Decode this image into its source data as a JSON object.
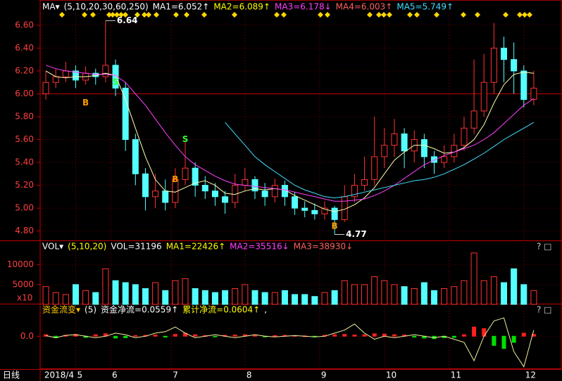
{
  "chart_data": [
    {
      "type": "candlestick",
      "header": [
        {
          "text": "MA▾",
          "color": "#ffffff"
        },
        {
          "text": "(5,10,20,30,60,250)",
          "color": "#ffffff"
        },
        {
          "text": "MA1=6.052↑",
          "color": "#ffffff"
        },
        {
          "text": "MA2=6.089↑",
          "color": "#ffff00"
        },
        {
          "text": "MA3=6.178↓",
          "color": "#ff40ff"
        },
        {
          "text": "MA4=6.003↑",
          "color": "#ff6060"
        },
        {
          "text": "MA5=5.749↑",
          "color": "#40e0ff"
        }
      ],
      "ohlc": [
        [
          6.0,
          6.2,
          5.95,
          6.1
        ],
        [
          6.1,
          6.22,
          6.05,
          6.15
        ],
        [
          6.15,
          6.28,
          6.1,
          6.2
        ],
        [
          6.2,
          6.25,
          6.05,
          6.12
        ],
        [
          6.12,
          6.24,
          6.08,
          6.18
        ],
        [
          6.18,
          6.22,
          6.08,
          6.15
        ],
        [
          6.15,
          6.64,
          6.1,
          6.25
        ],
        [
          6.25,
          6.3,
          5.98,
          6.05
        ],
        [
          6.05,
          6.1,
          5.5,
          5.6
        ],
        [
          5.6,
          5.65,
          5.2,
          5.3
        ],
        [
          5.3,
          5.35,
          4.98,
          5.1
        ],
        [
          5.1,
          5.3,
          5.0,
          5.15
        ],
        [
          5.15,
          5.25,
          4.98,
          5.05
        ],
        [
          5.05,
          5.35,
          5.0,
          5.25
        ],
        [
          5.25,
          5.58,
          5.2,
          5.35
        ],
        [
          5.35,
          5.4,
          5.1,
          5.2
        ],
        [
          5.2,
          5.28,
          5.08,
          5.15
        ],
        [
          5.15,
          5.22,
          5.02,
          5.1
        ],
        [
          5.1,
          5.15,
          4.95,
          5.05
        ],
        [
          5.05,
          5.3,
          5.0,
          5.2
        ],
        [
          5.2,
          5.35,
          5.15,
          5.25
        ],
        [
          5.25,
          5.28,
          5.08,
          5.15
        ],
        [
          5.15,
          5.22,
          5.02,
          5.1
        ],
        [
          5.1,
          5.26,
          5.05,
          5.2
        ],
        [
          5.2,
          5.24,
          5.02,
          5.1
        ],
        [
          5.1,
          5.14,
          4.94,
          5.0
        ],
        [
          5.0,
          5.06,
          4.92,
          4.98
        ],
        [
          4.98,
          5.04,
          4.9,
          4.95
        ],
        [
          4.95,
          5.06,
          4.9,
          5.0
        ],
        [
          5.0,
          5.02,
          4.77,
          4.9
        ],
        [
          4.9,
          5.2,
          4.88,
          5.1
        ],
        [
          5.1,
          5.3,
          5.05,
          5.2
        ],
        [
          5.2,
          5.45,
          5.15,
          5.25
        ],
        [
          5.25,
          5.8,
          5.2,
          5.45
        ],
        [
          5.45,
          5.7,
          5.35,
          5.55
        ],
        [
          5.55,
          5.78,
          5.45,
          5.65
        ],
        [
          5.65,
          5.7,
          5.35,
          5.5
        ],
        [
          5.5,
          5.68,
          5.4,
          5.6
        ],
        [
          5.6,
          5.65,
          5.35,
          5.45
        ],
        [
          5.45,
          5.5,
          5.3,
          5.4
        ],
        [
          5.4,
          5.55,
          5.35,
          5.45
        ],
        [
          5.45,
          5.65,
          5.4,
          5.55
        ],
        [
          5.55,
          5.8,
          5.5,
          5.7
        ],
        [
          5.7,
          6.3,
          5.65,
          5.85
        ],
        [
          5.85,
          6.35,
          5.8,
          6.1
        ],
        [
          6.1,
          6.62,
          6.0,
          6.4
        ],
        [
          6.4,
          6.5,
          6.1,
          6.3
        ],
        [
          6.3,
          6.45,
          6.0,
          6.2
        ],
        [
          6.2,
          6.25,
          5.88,
          5.95
        ],
        [
          5.95,
          6.2,
          5.9,
          6.05
        ]
      ],
      "up_color": "#ff3232",
      "down_color": "#54ffff",
      "series": [
        {
          "color": "#ffffb0",
          "values": [
            6.2,
            6.15,
            6.14,
            6.15,
            6.15,
            6.16,
            6.18,
            6.16,
            5.95,
            5.7,
            5.45,
            5.25,
            5.15,
            5.14,
            5.18,
            5.22,
            5.24,
            5.2,
            5.13,
            5.12,
            5.15,
            5.17,
            5.16,
            5.17,
            5.16,
            5.11,
            5.07,
            5.03,
            4.99,
            4.97,
            4.99,
            5.03,
            5.09,
            5.18,
            5.3,
            5.42,
            5.49,
            5.55,
            5.55,
            5.52,
            5.48,
            5.49,
            5.53,
            5.6,
            5.73,
            5.92,
            6.08,
            6.17,
            6.19,
            6.18
          ]
        },
        {
          "color": "#ff40ff",
          "values": [
            6.25,
            6.22,
            6.2,
            6.19,
            6.18,
            6.17,
            6.17,
            6.16,
            6.1,
            6.0,
            5.9,
            5.78,
            5.66,
            5.55,
            5.45,
            5.38,
            5.33,
            5.28,
            5.24,
            5.21,
            5.2,
            5.19,
            5.18,
            5.17,
            5.16,
            5.14,
            5.12,
            5.1,
            5.08,
            5.06,
            5.06,
            5.07,
            5.08,
            5.11,
            5.15,
            5.2,
            5.26,
            5.32,
            5.38,
            5.42,
            5.46,
            5.49,
            5.52,
            5.55,
            5.6,
            5.66,
            5.74,
            5.82,
            5.9,
            5.96
          ]
        },
        {
          "color": "#40e0ff",
          "values": [
            null,
            null,
            null,
            null,
            null,
            null,
            null,
            null,
            null,
            null,
            null,
            null,
            null,
            null,
            null,
            null,
            null,
            null,
            5.75,
            5.65,
            5.55,
            5.45,
            5.38,
            5.32,
            5.26,
            5.2,
            5.16,
            5.13,
            5.1,
            5.09,
            5.1,
            5.12,
            5.14,
            5.16,
            5.18,
            5.2,
            5.22,
            5.24,
            5.25,
            5.27,
            5.3,
            5.34,
            5.38,
            5.43,
            5.48,
            5.54,
            5.6,
            5.65,
            5.7,
            5.75
          ]
        }
      ],
      "ylim": [
        4.73,
        6.71
      ],
      "yticks": [
        {
          "value": 4.8,
          "label": "4.80"
        },
        {
          "value": 5.0,
          "label": "5.00"
        },
        {
          "value": 5.2,
          "label": "5.20"
        },
        {
          "value": 5.4,
          "label": "5.40"
        },
        {
          "value": 5.6,
          "label": "5.60"
        },
        {
          "value": 5.8,
          "label": "5.80"
        },
        {
          "value": 6.0,
          "label": "6.00"
        },
        {
          "value": 6.2,
          "label": "6.20"
        },
        {
          "value": 6.4,
          "label": "6.40"
        },
        {
          "value": 6.6,
          "label": "6.60"
        }
      ],
      "annotations": [
        {
          "text": "6.64",
          "x": 6,
          "y": 6.64,
          "color": "#ffffff"
        },
        {
          "text": "4.77",
          "x": 29,
          "y": 4.77,
          "color": "#ffffff"
        },
        {
          "text": "B",
          "x": 4,
          "y": 5.92,
          "color": "#ff9900"
        },
        {
          "text": "S",
          "x": 7,
          "y": 6.1,
          "color": "#33ff33"
        },
        {
          "text": "B",
          "x": 13,
          "y": 5.25,
          "color": "#ff9900"
        },
        {
          "text": "S",
          "x": 14,
          "y": 5.6,
          "color": "#33ff33"
        },
        {
          "text": "B",
          "x": 29,
          "y": 4.84,
          "color": "#ff9900"
        }
      ]
    },
    {
      "type": "bar",
      "header": [
        {
          "text": "VOL▾",
          "color": "#ffffff"
        },
        {
          "text": "(5,10,20)",
          "color": "#ffff00"
        },
        {
          "text": "VOL=31196",
          "color": "#ffffff"
        },
        {
          "text": "MA1=22426↑",
          "color": "#ffff00"
        },
        {
          "text": "MA2=35516↓",
          "color": "#ff40ff"
        },
        {
          "text": "MA3=38930↓",
          "color": "#ff6060"
        }
      ],
      "unit_label": "x10",
      "values": [
        4500,
        3000,
        2500,
        5000,
        3500,
        3000,
        9000,
        6000,
        5500,
        5000,
        4000,
        5500,
        3500,
        6000,
        6500,
        4000,
        3500,
        3000,
        3500,
        4000,
        5000,
        3500,
        3000,
        3000,
        3500,
        2500,
        2500,
        2000,
        3000,
        3500,
        6000,
        5000,
        5000,
        7000,
        6000,
        5000,
        4500,
        4000,
        5500,
        3500,
        4000,
        4500,
        6000,
        13000,
        6000,
        7000,
        5500,
        9000,
        5000,
        3500
      ],
      "ylim": [
        0,
        13500
      ],
      "yticks": [
        5000,
        10000
      ]
    },
    {
      "type": "bar",
      "header": [
        {
          "text": "资金流变▾",
          "color": "#ffcc00"
        },
        {
          "text": "(5)",
          "color": "#ffffff"
        },
        {
          "text": "资金净流=0.0559↑",
          "color": "#ffffff"
        },
        {
          "text": "累计净流=0.0604↑",
          "color": "#ffff00"
        },
        {
          "text": ",",
          "color": "#ffffff"
        }
      ],
      "values": [
        0.05,
        -0.05,
        0.03,
        0.06,
        -0.04,
        0.05,
        0.08,
        -0.06,
        -0.05,
        0.02,
        0.03,
        0.04,
        -0.03,
        0.06,
        0.1,
        0.05,
        0.02,
        -0.02,
        0.03,
        0.04,
        0.05,
        0.03,
        -0.02,
        0.02,
        0.03,
        0.02,
        0.01,
        -0.02,
        0.03,
        0.05,
        0.06,
        0.04,
        0.05,
        0.08,
        0.07,
        0.05,
        0.04,
        -0.03,
        -0.06,
        -0.08,
        -0.05,
        -0.04,
        0.05,
        0.3,
        0.25,
        -0.3,
        -0.4,
        -0.2,
        0.1,
        0.06
      ],
      "line": {
        "color": "#f0f0a0",
        "values": [
          0.02,
          -0.05,
          0.03,
          0.05,
          0.0,
          -0.05,
          0.0,
          0.1,
          0.05,
          -0.05,
          0.0,
          0.1,
          0.15,
          0.3,
          0.1,
          -0.05,
          0.0,
          0.05,
          0.0,
          -0.05,
          0.0,
          0.05,
          0.0,
          -0.02,
          0.0,
          0.02,
          0.0,
          -0.02,
          0.0,
          0.1,
          0.2,
          0.4,
          0.1,
          -0.1,
          0.0,
          -0.05,
          0.0,
          0.05,
          0.0,
          -0.05,
          0.0,
          -0.1,
          -0.2,
          -0.8,
          0.0,
          0.5,
          0.6,
          -0.5,
          -1.0,
          0.2
        ]
      },
      "ylim": [
        -1.05,
        0.65
      ],
      "yticks": [
        {
          "value": 0,
          "label": "0.0"
        }
      ],
      "x_labels": [
        {
          "text": "2018/4",
          "x": -0.3
        },
        {
          "text": "5",
          "x": 3
        },
        {
          "text": "6",
          "x": 6.5
        },
        {
          "text": "7",
          "x": 12.6
        },
        {
          "text": "8",
          "x": 20
        },
        {
          "text": "9",
          "x": 27.5
        },
        {
          "text": "10",
          "x": 34
        },
        {
          "text": "11",
          "x": 40.5
        },
        {
          "text": "12",
          "x": 48
        }
      ]
    }
  ],
  "toolbar": {
    "period": "日线"
  }
}
